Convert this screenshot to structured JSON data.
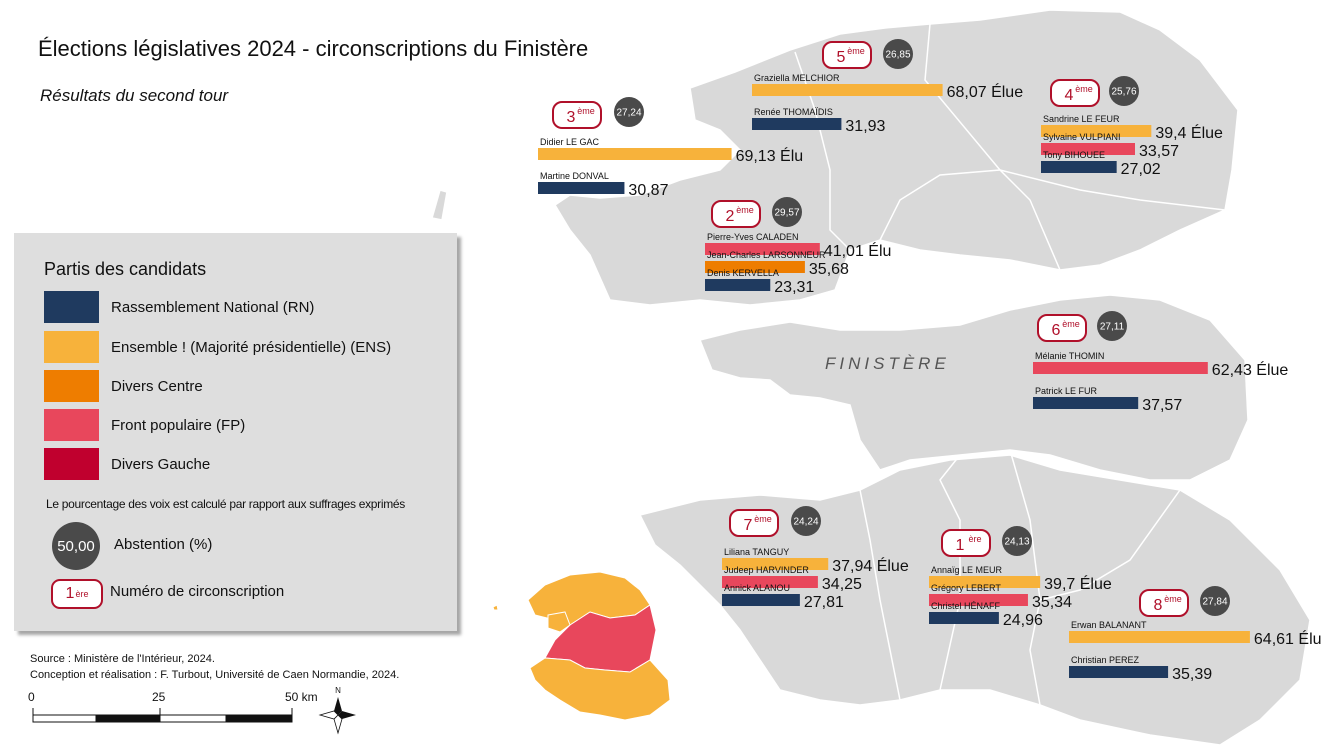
{
  "title": "Élections législatives 2024 - circonscriptions du Finistère",
  "subtitle": "Résultats du second tour",
  "department_label": "FINISTÈRE",
  "colors": {
    "RN": "#1f3a5f",
    "ENS": "#f7b23b",
    "DVC": "#ee7d00",
    "FP": "#e8475c",
    "DVG": "#c0002e",
    "land": "#d9d9d9",
    "border": "#ffffff",
    "abstention": "#4a4a4a",
    "circ_number": "#b0102a"
  },
  "legend": {
    "title": "Partis des candidats",
    "parties": [
      {
        "code": "RN",
        "label": "Rassemblement National (RN)"
      },
      {
        "code": "ENS",
        "label": "Ensemble ! (Majorité présidentielle) (ENS)"
      },
      {
        "code": "DVC",
        "label": "Divers Centre"
      },
      {
        "code": "FP",
        "label": "Front populaire (FP)"
      },
      {
        "code": "DVG",
        "label": "Divers Gauche"
      }
    ],
    "note": "Le pourcentage des voix est calculé par rapport aux suffrages exprimés",
    "abstention_sample": "50,00",
    "abstention_label": "Abstention (%)",
    "circ_sample_num": "1",
    "circ_sample_sup": "ère",
    "circ_label": "Numéro de circonscription"
  },
  "source_lines": [
    "Source : Ministère de l'Intérieur, 2024.",
    "Conception et réalisation : F. Turbout, Université de Caen Normandie, 2024."
  ],
  "scale": {
    "labels": [
      "0",
      "25",
      "50 km"
    ]
  },
  "north_label": "N",
  "circonscriptions": [
    {
      "num": "1",
      "sup": "ère",
      "abstention": "24,13",
      "candidates": [
        {
          "name": "Annaïg LE MEUR",
          "party": "ENS",
          "pct": 39.7,
          "label": "39,7",
          "elected": "Élue"
        },
        {
          "name": "Grégory LEBERT",
          "party": "FP",
          "pct": 35.34,
          "label": "35,34",
          "elected": ""
        },
        {
          "name": "Christel HÉNAFF",
          "party": "RN",
          "pct": 24.96,
          "label": "24,96",
          "elected": ""
        }
      ]
    },
    {
      "num": "2",
      "sup": "ème",
      "abstention": "29,57",
      "candidates": [
        {
          "name": "Pierre-Yves CALADEN",
          "party": "FP",
          "pct": 41.01,
          "label": "41,01",
          "elected": "Élu"
        },
        {
          "name": "Jean-Charles LARSONNEUR",
          "party": "DVC",
          "pct": 35.68,
          "label": "35,68",
          "elected": ""
        },
        {
          "name": "Denis KERVELLA",
          "party": "RN",
          "pct": 23.31,
          "label": "23,31",
          "elected": ""
        }
      ]
    },
    {
      "num": "3",
      "sup": "ème",
      "abstention": "27,24",
      "candidates": [
        {
          "name": "Didier LE GAC",
          "party": "ENS",
          "pct": 69.13,
          "label": "69,13",
          "elected": "Élu"
        },
        {
          "name": "Martine DONVAL",
          "party": "RN",
          "pct": 30.87,
          "label": "30,87",
          "elected": ""
        }
      ]
    },
    {
      "num": "4",
      "sup": "ème",
      "abstention": "25,76",
      "candidates": [
        {
          "name": "Sandrine LE FEUR",
          "party": "ENS",
          "pct": 39.4,
          "label": "39,4",
          "elected": "Élue"
        },
        {
          "name": "Sylvaine VULPIANI",
          "party": "FP",
          "pct": 33.57,
          "label": "33,57",
          "elected": ""
        },
        {
          "name": "Tony BIHOUEE",
          "party": "RN",
          "pct": 27.02,
          "label": "27,02",
          "elected": ""
        }
      ]
    },
    {
      "num": "5",
      "sup": "ème",
      "abstention": "26,85",
      "candidates": [
        {
          "name": "Graziella MELCHIOR",
          "party": "ENS",
          "pct": 68.07,
          "label": "68,07",
          "elected": "Élue"
        },
        {
          "name": "Renée THOMAÏDIS",
          "party": "RN",
          "pct": 31.93,
          "label": "31,93",
          "elected": ""
        }
      ]
    },
    {
      "num": "6",
      "sup": "ème",
      "abstention": "27,11",
      "candidates": [
        {
          "name": "Mélanie THOMIN",
          "party": "FP",
          "pct": 62.43,
          "label": "62,43",
          "elected": "Élue"
        },
        {
          "name": "Patrick LE FUR",
          "party": "RN",
          "pct": 37.57,
          "label": "37,57",
          "elected": ""
        }
      ]
    },
    {
      "num": "7",
      "sup": "ème",
      "abstention": "24,24",
      "candidates": [
        {
          "name": "Liliana TANGUY",
          "party": "ENS",
          "pct": 37.94,
          "label": "37,94",
          "elected": "Élue"
        },
        {
          "name": "Judeep HARVINDER",
          "party": "FP",
          "pct": 34.25,
          "label": "34,25",
          "elected": ""
        },
        {
          "name": "Annick ALANOU",
          "party": "RN",
          "pct": 27.81,
          "label": "27,81",
          "elected": ""
        }
      ]
    },
    {
      "num": "8",
      "sup": "ème",
      "abstention": "27,84",
      "candidates": [
        {
          "name": "Erwan BALANANT",
          "party": "ENS",
          "pct": 64.61,
          "label": "64,61",
          "elected": "Élu"
        },
        {
          "name": "Christian PEREZ",
          "party": "RN",
          "pct": 35.39,
          "label": "35,39",
          "elected": ""
        }
      ]
    }
  ]
}
